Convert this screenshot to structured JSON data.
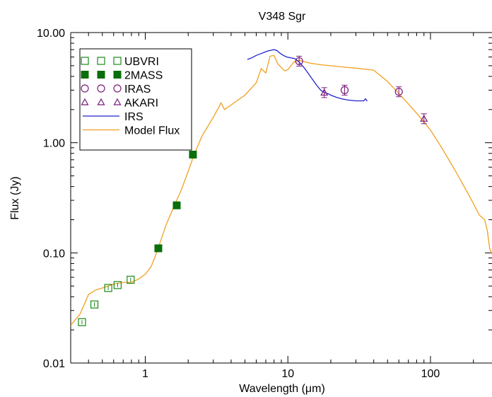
{
  "chart_data": {
    "type": "scatter",
    "title": "V348 Sgr",
    "xlabel": "Wavelength (μm)",
    "ylabel": "Flux (Jy)",
    "xscale": "log",
    "yscale": "log",
    "xlim": [
      0.3,
      270
    ],
    "ylim": [
      0.01,
      10
    ],
    "x_ticks": [
      {
        "value": 1,
        "label": "1"
      },
      {
        "value": 10,
        "label": "10"
      },
      {
        "value": 100,
        "label": "100"
      }
    ],
    "y_ticks": [
      {
        "value": 0.01,
        "label": "0.01"
      },
      {
        "value": 0.1,
        "label": "0.10"
      },
      {
        "value": 1,
        "label": "1.00"
      },
      {
        "value": 10,
        "label": "10.00"
      }
    ],
    "legend_position": "top-left",
    "series": [
      {
        "name": "UBVRI",
        "kind": "points",
        "marker": "square-open",
        "color": "#1a8a1a",
        "points": [
          [
            0.36,
            0.0235
          ],
          [
            0.44,
            0.034
          ],
          [
            0.55,
            0.048
          ],
          [
            0.64,
            0.051
          ],
          [
            0.79,
            0.057
          ]
        ]
      },
      {
        "name": "2MASS",
        "kind": "points",
        "marker": "square-filled",
        "color": "#0a6e0a",
        "points": [
          [
            1.235,
            0.11
          ],
          [
            1.662,
            0.27
          ],
          [
            2.159,
            0.78
          ]
        ]
      },
      {
        "name": "IRAS",
        "kind": "points",
        "marker": "circle-open",
        "color": "#7a1a7a",
        "points": [
          [
            12,
            5.5
          ],
          [
            25,
            3.0
          ],
          [
            60,
            2.9
          ]
        ]
      },
      {
        "name": "AKARI",
        "kind": "points",
        "marker": "triangle-open",
        "color": "#7a1a7a",
        "points": [
          [
            18,
            2.85
          ],
          [
            90,
            1.65
          ]
        ]
      },
      {
        "name": "IRS",
        "kind": "line",
        "color": "#2222cc",
        "points": [
          [
            5.2,
            5.7
          ],
          [
            5.6,
            5.9
          ],
          [
            6.0,
            6.2
          ],
          [
            6.4,
            6.4
          ],
          [
            6.8,
            6.6
          ],
          [
            7.2,
            6.8
          ],
          [
            7.6,
            6.9
          ],
          [
            8.0,
            7.0
          ],
          [
            8.4,
            6.85
          ],
          [
            8.8,
            6.5
          ],
          [
            9.3,
            6.2
          ],
          [
            9.8,
            6.0
          ],
          [
            10.5,
            5.9
          ],
          [
            11.2,
            5.8
          ],
          [
            12,
            5.4
          ],
          [
            13,
            4.8
          ],
          [
            14,
            4.2
          ],
          [
            15,
            3.7
          ],
          [
            16,
            3.3
          ],
          [
            17,
            3.0
          ],
          [
            18,
            2.85
          ],
          [
            19,
            2.8
          ],
          [
            20,
            2.7
          ],
          [
            22,
            2.58
          ],
          [
            24,
            2.5
          ],
          [
            26,
            2.45
          ],
          [
            28,
            2.42
          ],
          [
            30,
            2.4
          ],
          [
            32,
            2.4
          ],
          [
            34,
            2.4
          ],
          [
            35,
            2.5
          ],
          [
            36,
            2.38
          ]
        ]
      },
      {
        "name": "Model Flux",
        "kind": "line",
        "color": "#f0a020",
        "points": [
          [
            0.3,
            0.022
          ],
          [
            0.35,
            0.028
          ],
          [
            0.4,
            0.042
          ],
          [
            0.45,
            0.046
          ],
          [
            0.5,
            0.048
          ],
          [
            0.6,
            0.052
          ],
          [
            0.7,
            0.054
          ],
          [
            0.8,
            0.054
          ],
          [
            0.9,
            0.058
          ],
          [
            1.0,
            0.064
          ],
          [
            1.1,
            0.075
          ],
          [
            1.2,
            0.1
          ],
          [
            1.4,
            0.18
          ],
          [
            1.6,
            0.27
          ],
          [
            1.8,
            0.38
          ],
          [
            2.0,
            0.55
          ],
          [
            2.2,
            0.78
          ],
          [
            2.5,
            1.15
          ],
          [
            3.0,
            1.7
          ],
          [
            3.4,
            2.3
          ],
          [
            3.6,
            2.0
          ],
          [
            4.0,
            2.2
          ],
          [
            5.0,
            2.7
          ],
          [
            6.0,
            3.5
          ],
          [
            6.5,
            4.7
          ],
          [
            7.0,
            4.3
          ],
          [
            7.5,
            6.1
          ],
          [
            8.0,
            6.2
          ],
          [
            8.5,
            5.2
          ],
          [
            9.0,
            4.8
          ],
          [
            9.5,
            4.5
          ],
          [
            10,
            4.6
          ],
          [
            10.5,
            5.0
          ],
          [
            11,
            5.4
          ],
          [
            12,
            5.6
          ],
          [
            14,
            5.3
          ],
          [
            17,
            5.1
          ],
          [
            20,
            5.0
          ],
          [
            25,
            4.85
          ],
          [
            30,
            4.75
          ],
          [
            40,
            4.55
          ],
          [
            50,
            3.6
          ],
          [
            60,
            2.8
          ],
          [
            70,
            2.25
          ],
          [
            80,
            1.85
          ],
          [
            90,
            1.55
          ],
          [
            100,
            1.3
          ],
          [
            120,
            0.9
          ],
          [
            150,
            0.55
          ],
          [
            180,
            0.36
          ],
          [
            200,
            0.28
          ],
          [
            220,
            0.22
          ],
          [
            240,
            0.2
          ],
          [
            250,
            0.16
          ],
          [
            260,
            0.11
          ],
          [
            270,
            0.097
          ]
        ]
      }
    ]
  }
}
